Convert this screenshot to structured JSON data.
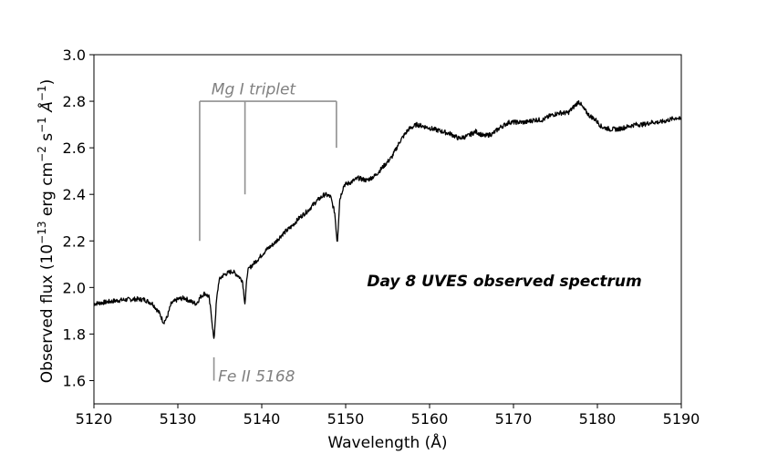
{
  "chart_data": {
    "type": "line",
    "title": "Day 8 UVES observed spectrum",
    "xlabel": "Wavelength (Å)",
    "ylabel_parts": [
      "Observed flux (10",
      "−13",
      " erg cm",
      "−2",
      " s",
      "−1",
      " Å",
      "−1",
      ")"
    ],
    "xlim": [
      5120,
      5190
    ],
    "ylim": [
      1.5,
      3.0
    ],
    "xticks": [
      5120,
      5130,
      5140,
      5150,
      5160,
      5170,
      5180,
      5190
    ],
    "yticks": [
      1.6,
      1.8,
      2.0,
      2.2,
      2.4,
      2.6,
      2.8,
      3.0
    ],
    "ytick_labels": [
      "1.6",
      "1.8",
      "2.0",
      "2.2",
      "2.4",
      "2.6",
      "2.8",
      "3.0"
    ],
    "grid": false,
    "series": [
      {
        "color": "#000000",
        "x": [
          5120,
          5121,
          5122,
          5123,
          5124,
          5125,
          5126,
          5127,
          5127.8,
          5128.3,
          5128.7,
          5129.2,
          5130,
          5130.8,
          5131.5,
          5132.2,
          5132.7,
          5133.2,
          5133.7,
          5134.0,
          5134.3,
          5134.6,
          5134.9,
          5135.3,
          5135.8,
          5136.5,
          5137.2,
          5137.7,
          5138.0,
          5138.3,
          5138.7,
          5139.5,
          5140.5,
          5141.5,
          5142.5,
          5143.5,
          5144.5,
          5145.5,
          5146.5,
          5147.5,
          5148.2,
          5148.7,
          5149.0,
          5149.3,
          5149.8,
          5150.5,
          5151.5,
          5152.5,
          5153.5,
          5154.5,
          5155.5,
          5156.5,
          5157.5,
          5158.5,
          5159.5,
          5160.5,
          5161.5,
          5162.5,
          5163.5,
          5164.5,
          5165.5,
          5166.5,
          5167.5,
          5168.5,
          5169.5,
          5170.5,
          5171.5,
          5172.5,
          5173.5,
          5174.5,
          5175.5,
          5176.5,
          5177.3,
          5177.8,
          5178.3,
          5179,
          5179.8,
          5180.5,
          5181.5,
          5182.5,
          5183.5,
          5184.5,
          5185.5,
          5186.5,
          5187.5,
          5188.5,
          5189.5,
          5190
        ],
        "y": [
          1.93,
          1.935,
          1.94,
          1.945,
          1.948,
          1.95,
          1.948,
          1.93,
          1.89,
          1.85,
          1.87,
          1.93,
          1.95,
          1.955,
          1.94,
          1.93,
          1.96,
          1.975,
          1.96,
          1.88,
          1.77,
          1.94,
          2.03,
          2.05,
          2.06,
          2.07,
          2.05,
          2.03,
          1.93,
          2.07,
          2.09,
          2.12,
          2.16,
          2.19,
          2.23,
          2.26,
          2.3,
          2.33,
          2.37,
          2.4,
          2.39,
          2.32,
          2.19,
          2.38,
          2.44,
          2.45,
          2.47,
          2.46,
          2.48,
          2.52,
          2.56,
          2.63,
          2.68,
          2.7,
          2.69,
          2.68,
          2.67,
          2.66,
          2.64,
          2.65,
          2.67,
          2.65,
          2.66,
          2.69,
          2.71,
          2.71,
          2.71,
          2.72,
          2.72,
          2.74,
          2.75,
          2.75,
          2.78,
          2.8,
          2.77,
          2.74,
          2.72,
          2.69,
          2.68,
          2.68,
          2.69,
          2.7,
          2.7,
          2.71,
          2.71,
          2.72,
          2.73,
          2.72
        ]
      }
    ],
    "annotations": [
      {
        "text": "Mg I triplet",
        "lines_x": [
          5132.6,
          5138.0,
          5148.9
        ],
        "lines_bottom": [
          2.2,
          2.4,
          2.6
        ],
        "bar_y": 2.8,
        "label_x": 5134.0,
        "label_y": 2.83
      },
      {
        "text": "Fe II 5168",
        "line_x": 5134.3,
        "line_y": [
          1.6,
          1.7
        ],
        "label_x": 5134.8,
        "label_y": 1.6
      }
    ]
  }
}
